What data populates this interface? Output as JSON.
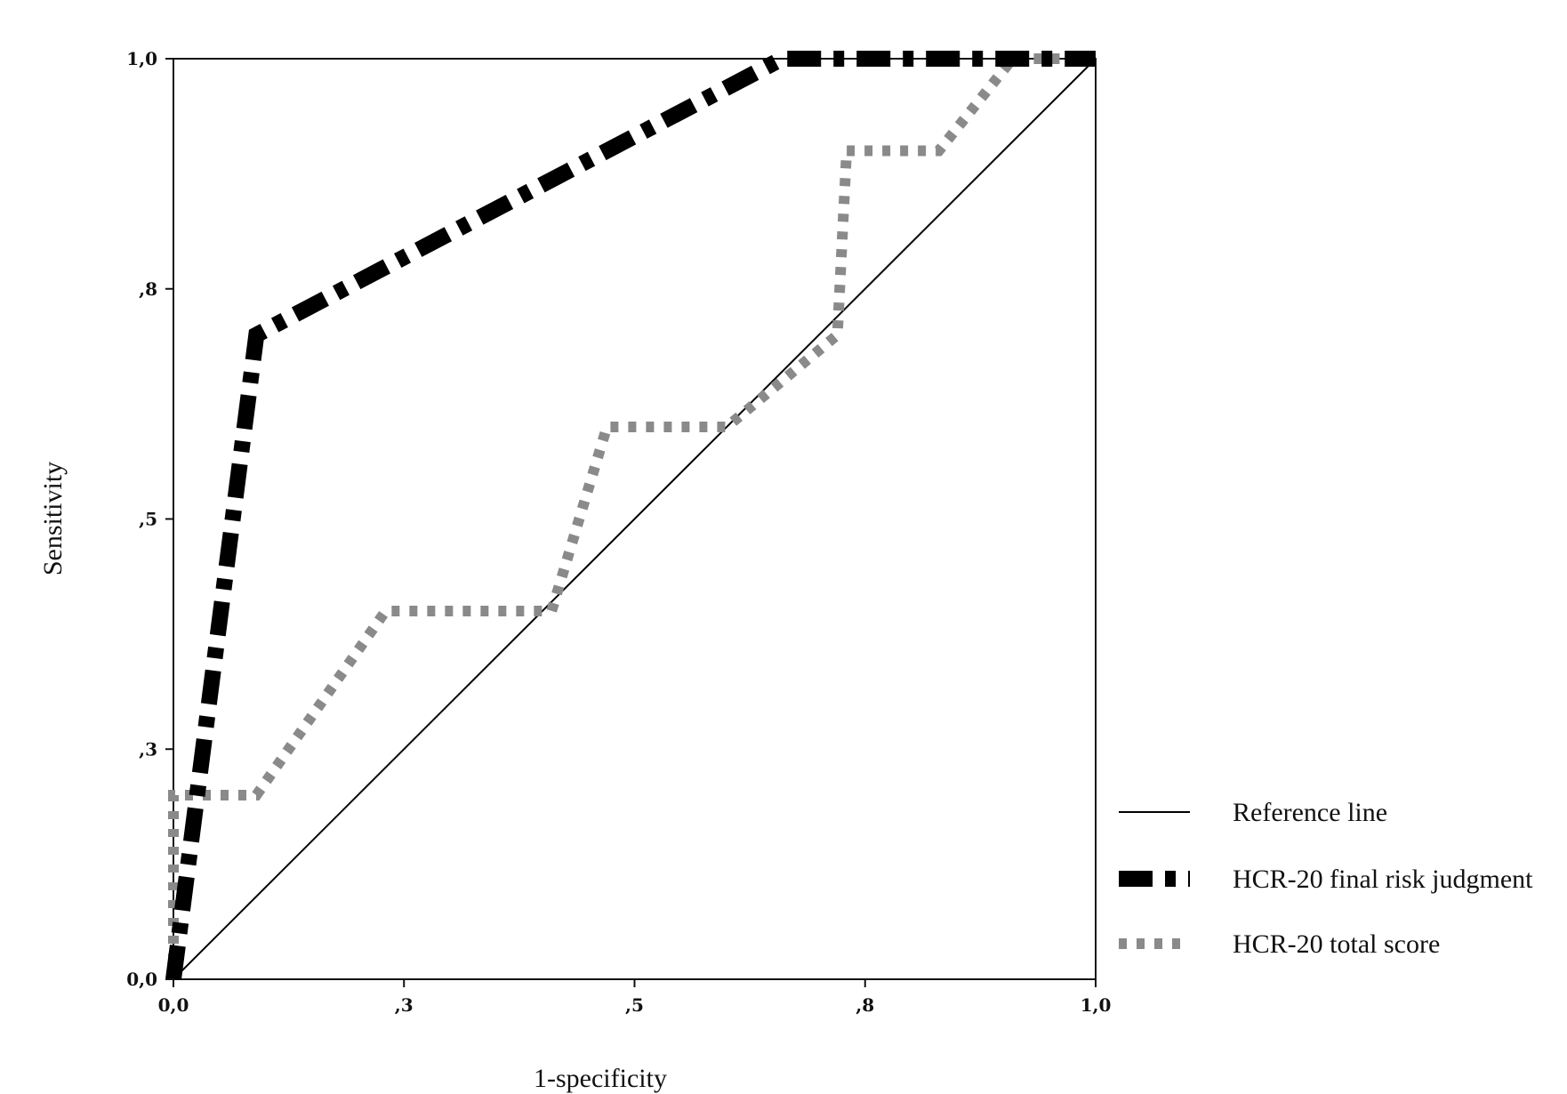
{
  "chart_data": {
    "type": "line",
    "xlabel": "1-specificity",
    "ylabel": "Sensitivity",
    "xlim": [
      0,
      1
    ],
    "ylim": [
      0,
      1
    ],
    "x_ticks": [
      {
        "value": 0.0,
        "label": "0,0"
      },
      {
        "value": 0.25,
        "label": ",3"
      },
      {
        "value": 0.5,
        "label": ",5"
      },
      {
        "value": 0.75,
        "label": ",8"
      },
      {
        "value": 1.0,
        "label": "1,0"
      }
    ],
    "y_ticks": [
      {
        "value": 0.0,
        "label": "0,0"
      },
      {
        "value": 0.25,
        "label": ",3"
      },
      {
        "value": 0.5,
        "label": ",5"
      },
      {
        "value": 0.75,
        "label": ",8"
      },
      {
        "value": 1.0,
        "label": "1,0"
      }
    ],
    "grid": false,
    "legend_position": "right",
    "series": [
      {
        "name": "Reference line",
        "color": "#000000",
        "style": "solid-thin",
        "x": [
          0,
          1
        ],
        "y": [
          0,
          1
        ]
      },
      {
        "name": "HCR-20 final risk judgment",
        "color": "#000000",
        "style": "dash-dot-thick",
        "x": [
          0,
          0.09,
          0.66,
          1
        ],
        "y": [
          0,
          0.7,
          1,
          1
        ]
      },
      {
        "name": "HCR-20 total score",
        "color": "#8a8a8a",
        "style": "dotted-thick",
        "x": [
          0,
          0,
          0.09,
          0.23,
          0.41,
          0.47,
          0.6,
          0.72,
          0.73,
          0.83,
          0.91,
          1
        ],
        "y": [
          0,
          0.2,
          0.2,
          0.4,
          0.4,
          0.6,
          0.6,
          0.7,
          0.9,
          0.9,
          1,
          1
        ]
      }
    ]
  }
}
